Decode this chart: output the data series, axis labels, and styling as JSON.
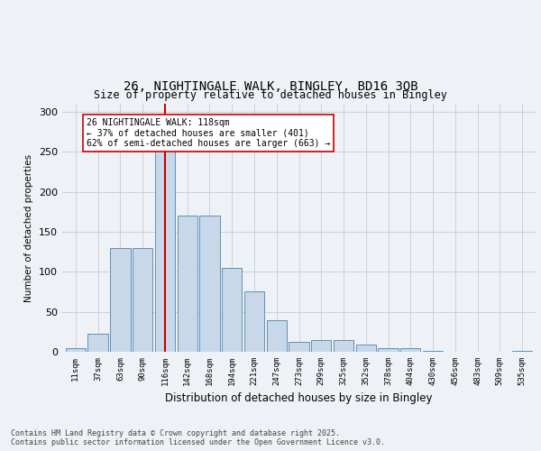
{
  "title1": "26, NIGHTINGALE WALK, BINGLEY, BD16 3QB",
  "title2": "Size of property relative to detached houses in Bingley",
  "xlabel": "Distribution of detached houses by size in Bingley",
  "ylabel": "Number of detached properties",
  "categories": [
    "11sqm",
    "37sqm",
    "63sqm",
    "90sqm",
    "116sqm",
    "142sqm",
    "168sqm",
    "194sqm",
    "221sqm",
    "247sqm",
    "273sqm",
    "299sqm",
    "325sqm",
    "352sqm",
    "378sqm",
    "404sqm",
    "430sqm",
    "456sqm",
    "483sqm",
    "509sqm",
    "535sqm"
  ],
  "values": [
    4,
    22,
    130,
    130,
    253,
    170,
    170,
    105,
    75,
    40,
    12,
    15,
    15,
    9,
    4,
    4,
    1,
    0,
    0,
    0,
    1
  ],
  "bar_color": "#c8d8e8",
  "bar_edge_color": "#6090b8",
  "vline_x_index": 4,
  "vline_color": "#cc0000",
  "annotation_text": "26 NIGHTINGALE WALK: 118sqm\n← 37% of detached houses are smaller (401)\n62% of semi-detached houses are larger (663) →",
  "annotation_box_facecolor": "#ffffff",
  "annotation_box_edgecolor": "#cc0000",
  "ylim": [
    0,
    310
  ],
  "yticks": [
    0,
    50,
    100,
    150,
    200,
    250,
    300
  ],
  "background_color": "#eef2f7",
  "grid_color": "#c8d0dc",
  "footer": "Contains HM Land Registry data © Crown copyright and database right 2025.\nContains public sector information licensed under the Open Government Licence v3.0."
}
